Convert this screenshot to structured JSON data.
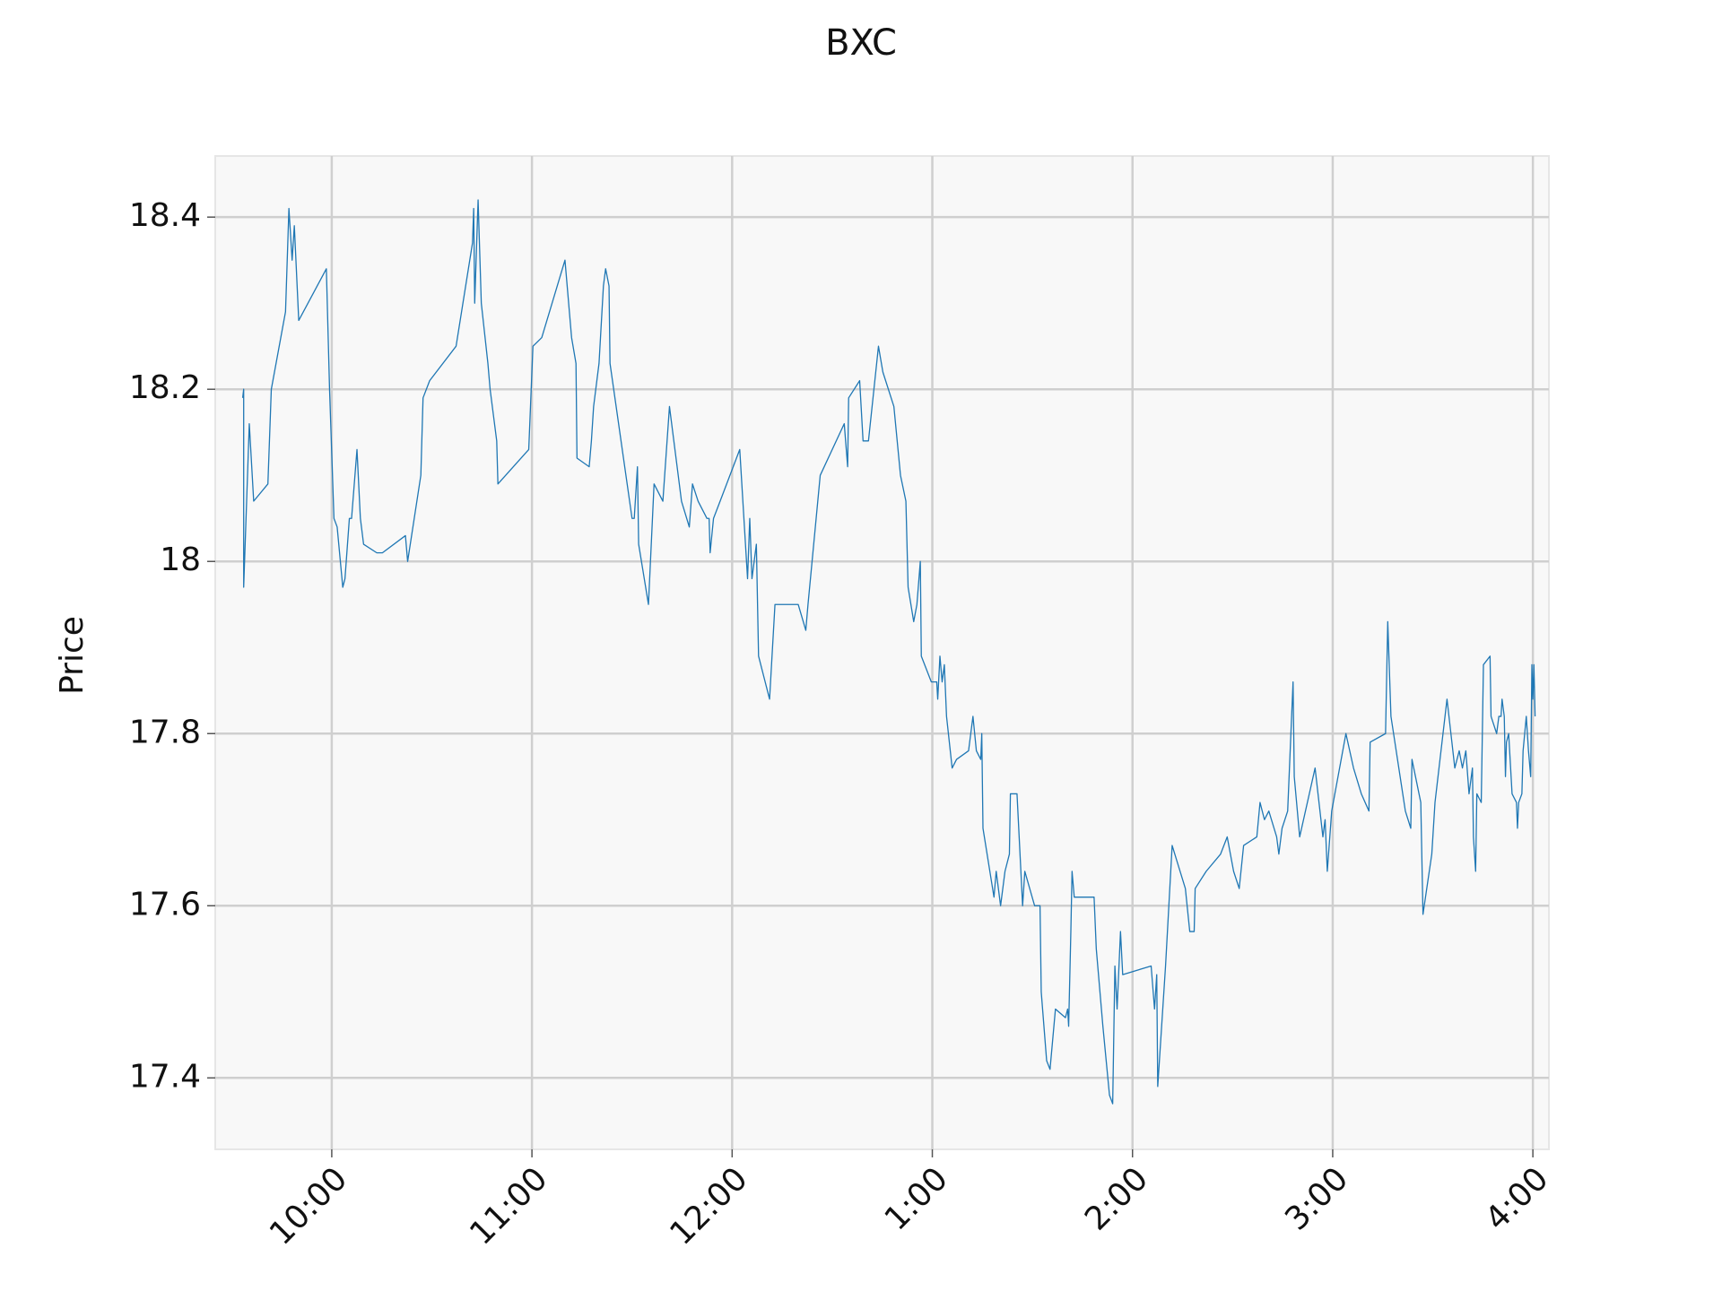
{
  "chart_data": {
    "type": "line",
    "title": "BXC",
    "ylabel": "Price",
    "color": "#1f77b4",
    "grid": true,
    "xlim": [
      9.418,
      16.08
    ],
    "ylim": [
      17.317,
      18.471
    ],
    "xticks": [
      {
        "value": 10,
        "label": "10:00"
      },
      {
        "value": 11,
        "label": "11:00"
      },
      {
        "value": 12,
        "label": "12:00"
      },
      {
        "value": 13,
        "label": "1:00"
      },
      {
        "value": 14,
        "label": "2:00"
      },
      {
        "value": 15,
        "label": "3:00"
      },
      {
        "value": 16,
        "label": "4:00"
      }
    ],
    "yticks": [
      17.4,
      17.6,
      17.8,
      18.0,
      18.2,
      18.4
    ],
    "x": [
      9.555,
      9.56,
      9.56,
      9.588,
      9.61,
      9.681,
      9.698,
      9.769,
      9.786,
      9.802,
      9.813,
      9.835,
      9.973,
      9.989,
      10.011,
      10.027,
      10.055,
      10.066,
      10.088,
      10.099,
      10.126,
      10.143,
      10.159,
      10.225,
      10.253,
      10.368,
      10.379,
      10.445,
      10.456,
      10.489,
      10.621,
      10.703,
      10.709,
      10.714,
      10.731,
      10.747,
      10.78,
      10.791,
      10.824,
      10.83,
      10.984,
      11.005,
      11.049,
      11.165,
      11.198,
      11.22,
      11.225,
      11.286,
      11.297,
      11.308,
      11.335,
      11.357,
      11.368,
      11.385,
      11.39,
      11.5,
      11.511,
      11.527,
      11.533,
      11.582,
      11.61,
      11.654,
      11.687,
      11.747,
      11.786,
      11.802,
      11.83,
      11.874,
      11.885,
      11.89,
      11.907,
      11.94,
      12.038,
      12.077,
      12.088,
      12.099,
      12.121,
      12.132,
      12.187,
      12.214,
      12.33,
      12.368,
      12.379,
      12.44,
      12.56,
      12.577,
      12.582,
      12.637,
      12.654,
      12.681,
      12.731,
      12.753,
      12.808,
      12.841,
      12.868,
      12.879,
      12.907,
      12.923,
      12.94,
      12.945,
      12.995,
      13.022,
      13.027,
      13.038,
      13.049,
      13.06,
      13.071,
      13.099,
      13.121,
      13.181,
      13.203,
      13.22,
      13.242,
      13.247,
      13.253,
      13.308,
      13.319,
      13.341,
      13.363,
      13.385,
      13.39,
      13.423,
      13.451,
      13.462,
      13.511,
      13.538,
      13.544,
      13.571,
      13.588,
      13.615,
      13.665,
      13.676,
      13.681,
      13.692,
      13.698,
      13.709,
      13.808,
      13.819,
      13.852,
      13.885,
      13.901,
      13.912,
      13.923,
      13.94,
      13.951,
      14.093,
      14.11,
      14.121,
      14.126,
      14.165,
      14.198,
      14.264,
      14.286,
      14.308,
      14.313,
      14.368,
      14.44,
      14.473,
      14.505,
      14.533,
      14.555,
      14.621,
      14.637,
      14.659,
      14.681,
      14.72,
      14.731,
      14.747,
      14.775,
      14.802,
      14.808,
      14.835,
      14.912,
      14.951,
      14.962,
      14.973,
      14.995,
      15.066,
      15.104,
      15.143,
      15.181,
      15.187,
      15.264,
      15.275,
      15.291,
      15.363,
      15.39,
      15.396,
      15.44,
      15.451,
      15.495,
      15.511,
      15.571,
      15.61,
      15.632,
      15.648,
      15.665,
      15.681,
      15.698,
      15.703,
      15.714,
      15.72,
      15.742,
      15.753,
      15.786,
      15.791,
      15.819,
      15.83,
      15.841,
      15.846,
      15.857,
      15.863,
      15.868,
      15.879,
      15.896,
      15.918,
      15.923,
      15.929,
      15.945,
      15.951,
      15.967,
      15.978,
      15.989,
      15.995,
      16.0,
      16.005,
      16.011
    ],
    "values": [
      18.19,
      18.2,
      17.97,
      18.16,
      18.07,
      18.09,
      18.2,
      18.29,
      18.41,
      18.35,
      18.39,
      18.28,
      18.34,
      18.2,
      18.05,
      18.04,
      17.97,
      17.98,
      18.05,
      18.05,
      18.13,
      18.05,
      18.02,
      18.01,
      18.01,
      18.03,
      18.0,
      18.1,
      18.19,
      18.21,
      18.25,
      18.37,
      18.41,
      18.3,
      18.42,
      18.3,
      18.23,
      18.2,
      18.14,
      18.09,
      18.13,
      18.25,
      18.26,
      18.35,
      18.26,
      18.23,
      18.12,
      18.11,
      18.14,
      18.18,
      18.23,
      18.32,
      18.34,
      18.32,
      18.23,
      18.05,
      18.05,
      18.11,
      18.02,
      17.95,
      18.09,
      18.07,
      18.18,
      18.07,
      18.04,
      18.09,
      18.07,
      18.05,
      18.05,
      18.01,
      18.05,
      18.07,
      18.13,
      17.98,
      18.05,
      17.98,
      18.02,
      17.89,
      17.84,
      17.95,
      17.95,
      17.92,
      17.95,
      18.1,
      18.16,
      18.11,
      18.19,
      18.21,
      18.14,
      18.14,
      18.25,
      18.22,
      18.18,
      18.1,
      18.07,
      17.97,
      17.93,
      17.95,
      18.0,
      17.89,
      17.86,
      17.86,
      17.84,
      17.89,
      17.86,
      17.88,
      17.82,
      17.76,
      17.77,
      17.78,
      17.82,
      17.78,
      17.77,
      17.8,
      17.69,
      17.61,
      17.64,
      17.6,
      17.64,
      17.66,
      17.73,
      17.73,
      17.6,
      17.64,
      17.6,
      17.6,
      17.5,
      17.42,
      17.41,
      17.48,
      17.47,
      17.48,
      17.46,
      17.57,
      17.64,
      17.61,
      17.61,
      17.55,
      17.46,
      17.38,
      17.37,
      17.53,
      17.48,
      17.57,
      17.52,
      17.53,
      17.48,
      17.52,
      17.39,
      17.53,
      17.67,
      17.62,
      17.57,
      17.57,
      17.62,
      17.64,
      17.66,
      17.68,
      17.64,
      17.62,
      17.67,
      17.68,
      17.72,
      17.7,
      17.71,
      17.68,
      17.66,
      17.69,
      17.71,
      17.86,
      17.75,
      17.68,
      17.76,
      17.68,
      17.7,
      17.64,
      17.71,
      17.8,
      17.76,
      17.73,
      17.71,
      17.79,
      17.8,
      17.93,
      17.82,
      17.71,
      17.69,
      17.77,
      17.72,
      17.59,
      17.66,
      17.72,
      17.84,
      17.76,
      17.78,
      17.76,
      17.78,
      17.73,
      17.76,
      17.68,
      17.64,
      17.73,
      17.72,
      17.88,
      17.89,
      17.82,
      17.8,
      17.82,
      17.82,
      17.84,
      17.82,
      17.75,
      17.79,
      17.8,
      17.73,
      17.72,
      17.69,
      17.72,
      17.73,
      17.78,
      17.82,
      17.78,
      17.75,
      17.88,
      17.84,
      17.88,
      17.82
    ]
  }
}
